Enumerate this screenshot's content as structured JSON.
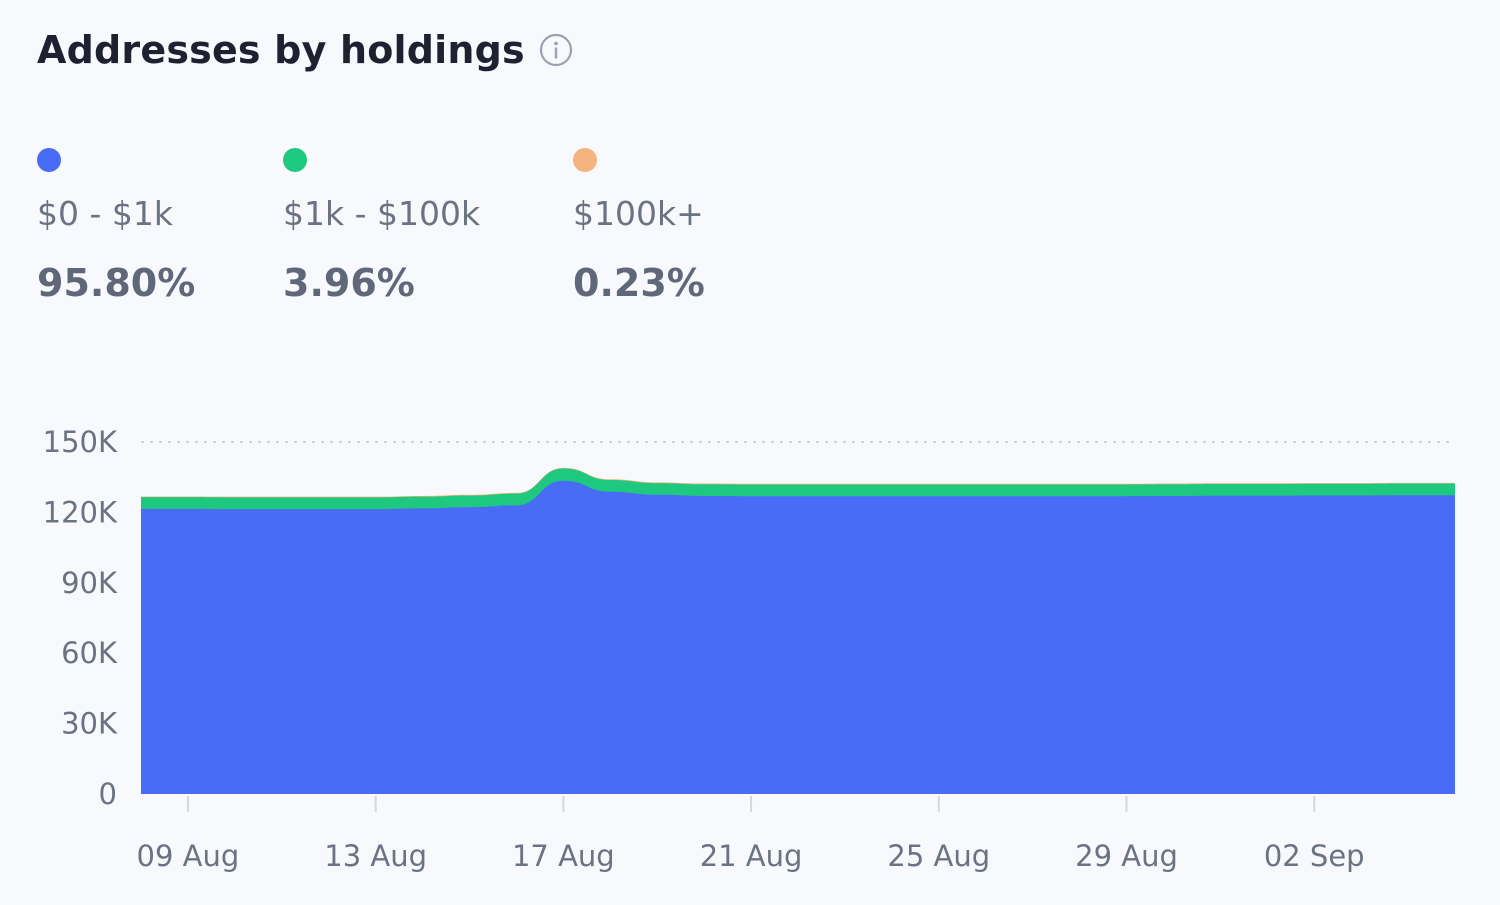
{
  "title": "Addresses by holdings",
  "icons": {
    "info": "info-circle-icon"
  },
  "legend": [
    {
      "label": "$0 - $1k",
      "value": "95.80%",
      "color": "#486cf5"
    },
    {
      "label": "$1k - $100k",
      "value": "3.96%",
      "color": "#1ec97f"
    },
    {
      "label": "$100k+",
      "value": "0.23%",
      "color": "#f4b27d"
    }
  ],
  "chart_data": {
    "type": "area",
    "stacked": true,
    "x": [
      "08 Aug",
      "09 Aug",
      "10 Aug",
      "11 Aug",
      "12 Aug",
      "13 Aug",
      "14 Aug",
      "15 Aug",
      "16 Aug",
      "17 Aug",
      "18 Aug",
      "19 Aug",
      "20 Aug",
      "21 Aug",
      "22 Aug",
      "23 Aug",
      "24 Aug",
      "25 Aug",
      "26 Aug",
      "27 Aug",
      "28 Aug",
      "29 Aug",
      "30 Aug",
      "31 Aug",
      "01 Sep",
      "02 Sep",
      "03 Sep",
      "04 Sep",
      "05 Sep"
    ],
    "x_tick_labels": [
      "09 Aug",
      "13 Aug",
      "17 Aug",
      "21 Aug",
      "25 Aug",
      "29 Aug",
      "02 Sep"
    ],
    "y_tick_labels": [
      "0",
      "30K",
      "60K",
      "90K",
      "120K",
      "150K"
    ],
    "ylim": [
      0,
      150000
    ],
    "grid": "dotted line at 150K",
    "series": [
      {
        "name": "$0 - $1k",
        "color": "#486cf5",
        "values": [
          121500,
          121500,
          121400,
          121400,
          121400,
          121400,
          121700,
          122200,
          123000,
          133500,
          128800,
          127500,
          127000,
          126900,
          126900,
          126900,
          126900,
          126900,
          126900,
          126900,
          126900,
          126900,
          127000,
          127100,
          127100,
          127200,
          127200,
          127300,
          127300
        ]
      },
      {
        "name": "$1k - $100k",
        "color": "#1ec97f",
        "values": [
          5000,
          5000,
          5000,
          5000,
          5000,
          5000,
          5000,
          5000,
          5000,
          5200,
          5000,
          5000,
          5000,
          5000,
          5000,
          5000,
          5000,
          5000,
          5000,
          5000,
          5000,
          5000,
          5000,
          5000,
          5000,
          5000,
          5000,
          5000,
          5000
        ]
      },
      {
        "name": "$100k+",
        "color": "#f4b27d",
        "values": [
          300,
          300,
          300,
          300,
          300,
          300,
          300,
          300,
          300,
          300,
          300,
          300,
          300,
          300,
          300,
          300,
          300,
          300,
          300,
          300,
          300,
          300,
          300,
          300,
          300,
          300,
          300,
          300,
          300
        ]
      }
    ]
  }
}
